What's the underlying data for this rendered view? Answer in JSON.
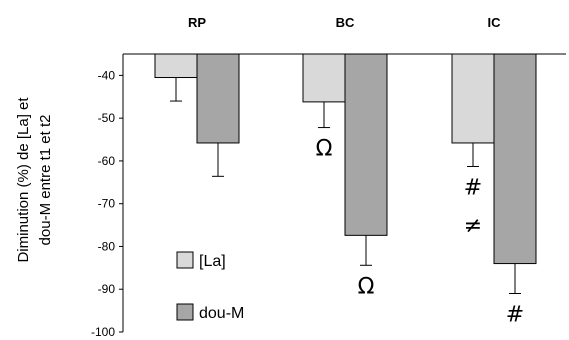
{
  "chart_data": {
    "type": "bar",
    "categories": [
      "RP",
      "BC",
      "IC"
    ],
    "series": [
      {
        "name": "[La]",
        "values": [
          -40.5,
          -46.2,
          -55.8
        ],
        "errors": [
          5.5,
          6.0,
          5.5
        ],
        "color": "#d9d9d9"
      },
      {
        "name": "dou-M",
        "values": [
          -55.8,
          -77.4,
          -84.0
        ],
        "errors": [
          7.8,
          7.0,
          7.0
        ],
        "color": "#a6a6a6"
      }
    ],
    "ylabel_lines": [
      "Diminution (%) de [La] et",
      "dou-M entre t1 et t2"
    ],
    "ylim": [
      -100,
      -35
    ],
    "baseline": -35,
    "yticks": [
      -40,
      -50,
      -60,
      -70,
      -80,
      -90,
      -100
    ],
    "ytick_labels": [
      "-40",
      "-50",
      "-60",
      "-70",
      "-80",
      "-90",
      "-100"
    ],
    "legend_position": "bottom-left",
    "annotations": [
      {
        "text": "Ω",
        "category": "BC",
        "series": 0
      },
      {
        "text": "Ω",
        "category": "BC",
        "series": 1
      },
      {
        "text": "#",
        "category": "IC",
        "series": 0
      },
      {
        "text": "≠",
        "category": "IC",
        "series": 0
      },
      {
        "text": "#",
        "category": "IC",
        "series": 1
      }
    ]
  }
}
